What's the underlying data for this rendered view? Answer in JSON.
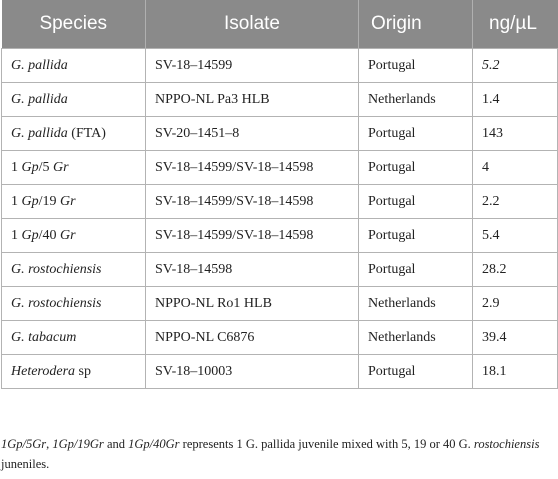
{
  "table": {
    "headers": [
      "Species",
      "Isolate",
      "Origin",
      "ng/µL"
    ],
    "rows": [
      {
        "species": [
          {
            "t": "G. pallida",
            "i": true
          }
        ],
        "isolate": "SV-18–14599",
        "origin": "Portugal",
        "ng": "5.2",
        "ng_italic": true
      },
      {
        "species": [
          {
            "t": "G. pallida",
            "i": true
          }
        ],
        "isolate": "NPPO-NL Pa3 HLB",
        "origin": "Netherlands",
        "ng": "1.4",
        "ng_italic": false
      },
      {
        "species": [
          {
            "t": "G. pallida",
            "i": true
          },
          {
            "t": " (FTA)",
            "i": false
          }
        ],
        "isolate": "SV-20–1451–8",
        "origin": "Portugal",
        "ng": "143",
        "ng_italic": false
      },
      {
        "species": [
          {
            "t": "1 ",
            "i": false
          },
          {
            "t": "Gp",
            "i": true
          },
          {
            "t": "/5 ",
            "i": false
          },
          {
            "t": "Gr",
            "i": true
          }
        ],
        "isolate": "SV-18–14599/SV-18–14598",
        "origin": "Portugal",
        "ng": "4",
        "ng_italic": false
      },
      {
        "species": [
          {
            "t": "1 ",
            "i": false
          },
          {
            "t": "Gp",
            "i": true
          },
          {
            "t": "/19 ",
            "i": false
          },
          {
            "t": "Gr",
            "i": true
          }
        ],
        "isolate": "SV-18–14599/SV-18–14598",
        "origin": "Portugal",
        "ng": "2.2",
        "ng_italic": false
      },
      {
        "species": [
          {
            "t": "1 ",
            "i": false
          },
          {
            "t": "Gp",
            "i": true
          },
          {
            "t": "/40 ",
            "i": false
          },
          {
            "t": "Gr",
            "i": true
          }
        ],
        "isolate": "SV-18–14599/SV-18–14598",
        "origin": "Portugal",
        "ng": "5.4",
        "ng_italic": false
      },
      {
        "species": [
          {
            "t": "G. rostochiensis",
            "i": true
          }
        ],
        "isolate": "SV-18–14598",
        "origin": "Portugal",
        "ng": "28.2",
        "ng_italic": false
      },
      {
        "species": [
          {
            "t": "G. rostochiensis",
            "i": true
          }
        ],
        "isolate": "NPPO-NL Ro1 HLB",
        "origin": "Netherlands",
        "ng": "2.9",
        "ng_italic": false
      },
      {
        "species": [
          {
            "t": "G. tabacum",
            "i": true
          }
        ],
        "isolate": "NPPO-NL C6876",
        "origin": "Netherlands",
        "ng": "39.4",
        "ng_italic": false
      },
      {
        "species": [
          {
            "t": "Heterodera",
            "i": true
          },
          {
            "t": " sp",
            "i": false
          }
        ],
        "isolate": "SV-18–10003",
        "origin": "Portugal",
        "ng": "18.1",
        "ng_italic": false
      }
    ]
  },
  "footnote": [
    {
      "t": "1Gp/5Gr",
      "i": true
    },
    {
      "t": ", ",
      "i": false
    },
    {
      "t": "1Gp/19Gr",
      "i": true
    },
    {
      "t": " and ",
      "i": false
    },
    {
      "t": "1Gp/40Gr",
      "i": true
    },
    {
      "t": " represents 1 G. pallida juvenile mixed with 5, 19 or 40 G. ",
      "i": false
    },
    {
      "t": "rostochiensis",
      "i": true
    },
    {
      "t": " juneniles.",
      "i": false
    }
  ]
}
